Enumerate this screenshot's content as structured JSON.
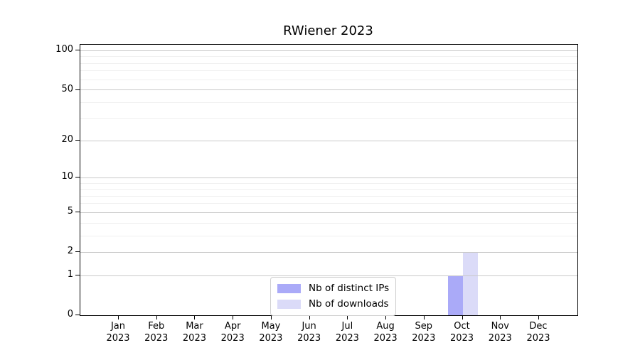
{
  "chart_data": {
    "type": "bar",
    "title": "RWiener 2023",
    "scale": "log1p",
    "ylim": [
      0,
      111
    ],
    "grid": "horizontal",
    "legend_position": "lower center",
    "yticks": [
      0,
      1,
      2,
      5,
      10,
      20,
      50,
      100
    ],
    "grid_major": [
      1,
      2,
      5,
      10,
      20,
      50,
      100
    ],
    "grid_minor": [
      3,
      4,
      6,
      7,
      8,
      9,
      30,
      40,
      60,
      70,
      80,
      90
    ],
    "categories": [
      {
        "line1": "Jan",
        "line2": "2023"
      },
      {
        "line1": "Feb",
        "line2": "2023"
      },
      {
        "line1": "Mar",
        "line2": "2023"
      },
      {
        "line1": "Apr",
        "line2": "2023"
      },
      {
        "line1": "May",
        "line2": "2023"
      },
      {
        "line1": "Jun",
        "line2": "2023"
      },
      {
        "line1": "Jul",
        "line2": "2023"
      },
      {
        "line1": "Aug",
        "line2": "2023"
      },
      {
        "line1": "Sep",
        "line2": "2023"
      },
      {
        "line1": "Oct",
        "line2": "2023"
      },
      {
        "line1": "Nov",
        "line2": "2023"
      },
      {
        "line1": "Dec",
        "line2": "2023"
      }
    ],
    "series": [
      {
        "name": "Nb of distinct IPs",
        "color": "#aaaaf8",
        "values": [
          0,
          0,
          0,
          0,
          0,
          0,
          0,
          0,
          0,
          1,
          0,
          0
        ]
      },
      {
        "name": "Nb of downloads",
        "color": "#dbdbf8",
        "values": [
          0,
          0,
          0,
          0,
          0,
          0,
          0,
          0,
          0,
          2,
          0,
          0
        ]
      }
    ]
  }
}
